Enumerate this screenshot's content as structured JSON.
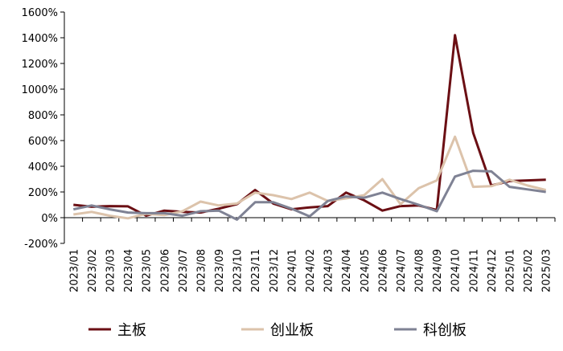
{
  "chart_data": {
    "type": "line",
    "title": "",
    "xlabel": "",
    "ylabel": "",
    "ylim": [
      -200,
      1600
    ],
    "y_ticks": [
      -200,
      0,
      200,
      400,
      600,
      800,
      1000,
      1200,
      1400,
      1600
    ],
    "y_tick_labels": [
      "-200%",
      "0%",
      "200%",
      "400%",
      "600%",
      "800%",
      "1000%",
      "1200%",
      "1400%",
      "1600%"
    ],
    "grid": false,
    "legend_position": "bottom",
    "categories": [
      "2023/01",
      "2023/02",
      "2023/03",
      "2023/04",
      "2023/05",
      "2023/06",
      "2023/07",
      "2023/08",
      "2023/09",
      "2023/10",
      "2023/11",
      "2023/12",
      "2024/01",
      "2024/02",
      "2024/03",
      "2024/04",
      "2024/05",
      "2024/06",
      "2024/07",
      "2024/08",
      "2024/09",
      "2024/10",
      "2024/11",
      "2024/12",
      "2025/01",
      "2025/02",
      "2025/03"
    ],
    "series": [
      {
        "name": "主板",
        "color": "#6b0f14",
        "values": [
          100,
          85,
          90,
          88,
          15,
          55,
          45,
          40,
          70,
          105,
          215,
          110,
          65,
          80,
          90,
          195,
          135,
          55,
          90,
          95,
          60,
          1420,
          660,
          250,
          285,
          290,
          295
        ]
      },
      {
        "name": "创业板",
        "color": "#dcc3ab",
        "values": [
          25,
          45,
          15,
          -5,
          30,
          20,
          50,
          125,
          95,
          110,
          195,
          175,
          145,
          195,
          130,
          150,
          175,
          300,
          105,
          230,
          290,
          630,
          240,
          245,
          295,
          250,
          215
        ]
      },
      {
        "name": "科创板",
        "color": "#7f8294",
        "values": [
          65,
          95,
          65,
          40,
          35,
          35,
          15,
          50,
          55,
          -15,
          120,
          120,
          70,
          10,
          130,
          165,
          155,
          195,
          145,
          100,
          50,
          320,
          365,
          360,
          240,
          220,
          200
        ]
      }
    ]
  }
}
